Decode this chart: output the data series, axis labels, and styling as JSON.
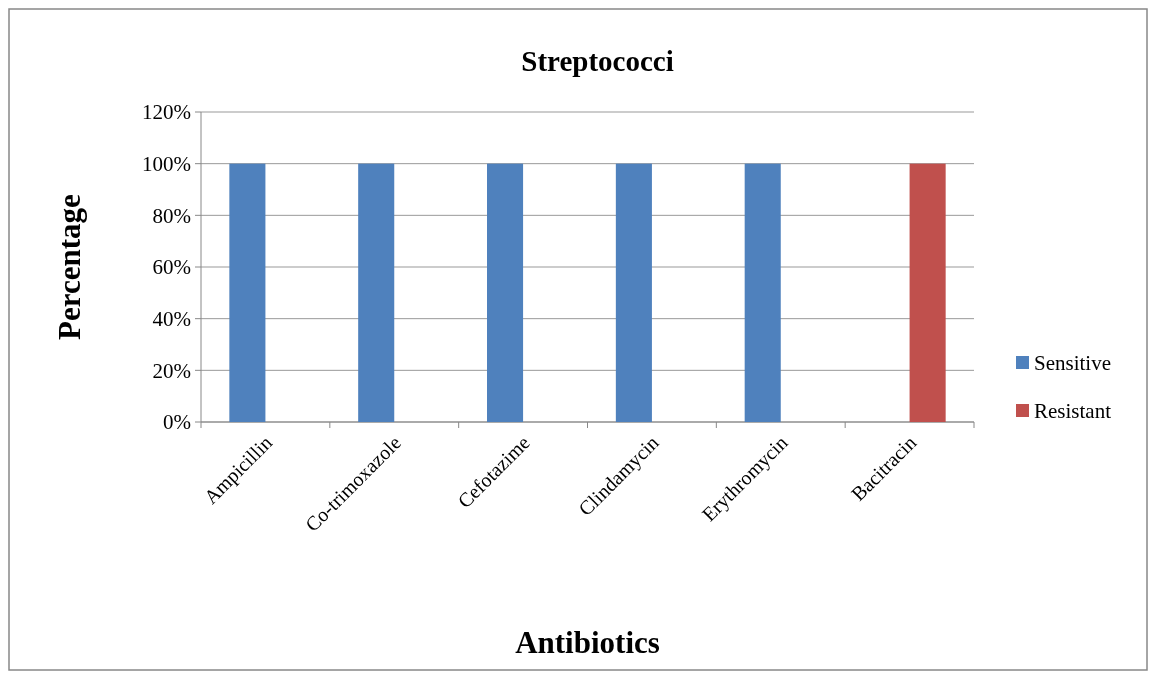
{
  "chart_data": {
    "type": "bar",
    "title": "Streptococci",
    "xlabel": "Antibiotics",
    "ylabel": "Percentage",
    "categories": [
      "Ampicillin",
      "Co-trimoxazole",
      "Cefotazime",
      "Clindamycin",
      "Erythromycin",
      "Bacitracin"
    ],
    "series": [
      {
        "name": "Sensitive",
        "color": "#4f81bd",
        "values": [
          100,
          100,
          100,
          100,
          100,
          0
        ]
      },
      {
        "name": "Resistant",
        "color": "#c0504d",
        "values": [
          0,
          0,
          0,
          0,
          0,
          100
        ]
      }
    ],
    "ylim": [
      0,
      120
    ],
    "yticks": [
      {
        "value": 0,
        "label": "0%"
      },
      {
        "value": 20,
        "label": "20%"
      },
      {
        "value": 40,
        "label": "40%"
      },
      {
        "value": 60,
        "label": "60%"
      },
      {
        "value": 80,
        "label": "80%"
      },
      {
        "value": 100,
        "label": "100%"
      },
      {
        "value": 120,
        "label": "120%"
      }
    ],
    "grid": "y",
    "legend": "right"
  }
}
